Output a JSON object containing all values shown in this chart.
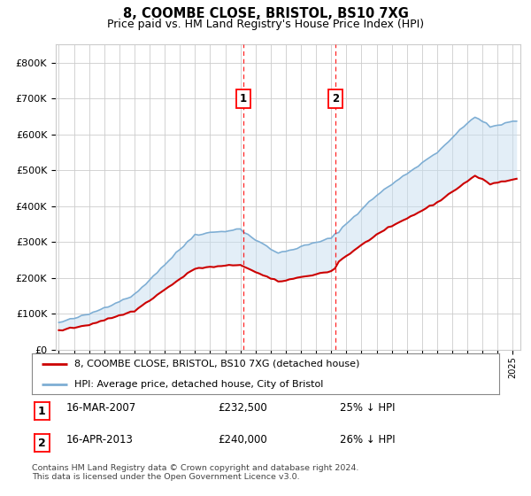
{
  "title": "8, COOMBE CLOSE, BRISTOL, BS10 7XG",
  "subtitle": "Price paid vs. HM Land Registry's House Price Index (HPI)",
  "title_fontsize": 10.5,
  "subtitle_fontsize": 9,
  "ylabel_ticks": [
    "£0",
    "£100K",
    "£200K",
    "£300K",
    "£400K",
    "£500K",
    "£600K",
    "£700K",
    "£800K"
  ],
  "ytick_vals": [
    0,
    100000,
    200000,
    300000,
    400000,
    500000,
    600000,
    700000,
    800000
  ],
  "ylim": [
    0,
    850000
  ],
  "xlim_start": 1994.8,
  "xlim_end": 2025.5,
  "sale1_x": 2007.21,
  "sale1_y": 232500,
  "sale2_x": 2013.29,
  "sale2_y": 240000,
  "sale1_label": "1",
  "sale2_label": "2",
  "legend_line1": "8, COOMBE CLOSE, BRISTOL, BS10 7XG (detached house)",
  "legend_line2": "HPI: Average price, detached house, City of Bristol",
  "table_rows": [
    [
      "1",
      "16-MAR-2007",
      "£232,500",
      "25% ↓ HPI"
    ],
    [
      "2",
      "16-APR-2013",
      "£240,000",
      "26% ↓ HPI"
    ]
  ],
  "footnote": "Contains HM Land Registry data © Crown copyright and database right 2024.\nThis data is licensed under the Open Government Licence v3.0.",
  "red_color": "#cc0000",
  "blue_color": "#7eaed4",
  "shade_color": "#c8dff0",
  "grid_color": "#cccccc",
  "background_color": "#ffffff"
}
